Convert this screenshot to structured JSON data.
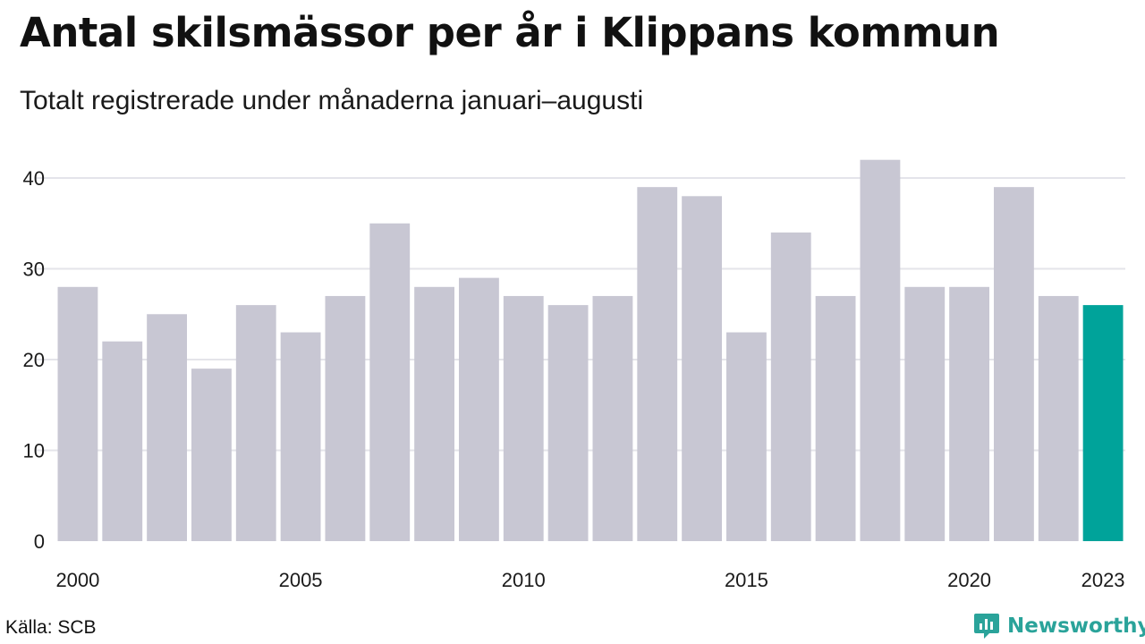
{
  "header": {
    "title": "Antal skilsmässor per år i Klippans kommun",
    "subtitle": "Totalt registrerade under månaderna januari–augusti"
  },
  "footer": {
    "source": "Källa: SCB",
    "brand": "Newsworthy",
    "brand_icon": "newsworthy-logo-icon"
  },
  "colors": {
    "bar": "#c8c7d3",
    "highlight": "#00a39a",
    "grid": "#e4e4ea",
    "axis_text": "#1a1a1a"
  },
  "chart_data": {
    "type": "bar",
    "categories": [
      "2000",
      "2001",
      "2002",
      "2003",
      "2004",
      "2005",
      "2006",
      "2007",
      "2008",
      "2009",
      "2010",
      "2011",
      "2012",
      "2013",
      "2014",
      "2015",
      "2016",
      "2017",
      "2018",
      "2019",
      "2020",
      "2021",
      "2022",
      "2023"
    ],
    "values": [
      28,
      22,
      25,
      19,
      26,
      23,
      27,
      35,
      28,
      29,
      27,
      26,
      27,
      39,
      38,
      23,
      34,
      27,
      42,
      28,
      28,
      39,
      27,
      26
    ],
    "highlight_category": "2023",
    "x_tick_labels": [
      "2000",
      "2005",
      "2010",
      "2015",
      "2020",
      "2023"
    ],
    "y_ticks": [
      0,
      10,
      20,
      30,
      40
    ],
    "ylim": [
      0,
      43
    ],
    "grid": true,
    "title": "Antal skilsmässor per år i Klippans kommun",
    "xlabel": "",
    "ylabel": ""
  }
}
